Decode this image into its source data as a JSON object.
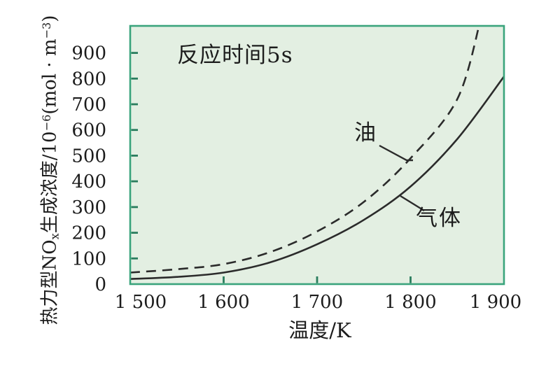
{
  "chart_data": {
    "type": "line",
    "title": "",
    "annotation": "反应时间5s",
    "xlabel": "温度/K",
    "ylabel_plain": "热力型NOx生成浓度/10−6(mol · m−3)",
    "ylabel_parts": {
      "p1": "热力型NO",
      "sub1": "x",
      "p2": "生成浓度/10",
      "sup1": "−6",
      "p3": "(mol · m",
      "sup2": "−3",
      "p4": ")"
    },
    "xlim": [
      1500,
      1900
    ],
    "ylim": [
      0,
      1005
    ],
    "grid": false,
    "legend_position": "inline-annotations",
    "x_ticks": [
      {
        "value": 1500,
        "label": "1 500"
      },
      {
        "value": 1600,
        "label": "1 600"
      },
      {
        "value": 1700,
        "label": "1 700"
      },
      {
        "value": 1800,
        "label": "1 800"
      },
      {
        "value": 1900,
        "label": "1 900"
      }
    ],
    "y_ticks": [
      {
        "value": 0,
        "label": "0"
      },
      {
        "value": 100,
        "label": "100"
      },
      {
        "value": 200,
        "label": "200"
      },
      {
        "value": 300,
        "label": "300"
      },
      {
        "value": 400,
        "label": "400"
      },
      {
        "value": 500,
        "label": "500"
      },
      {
        "value": 600,
        "label": "600"
      },
      {
        "value": 700,
        "label": "700"
      },
      {
        "value": 800,
        "label": "800"
      },
      {
        "value": 900,
        "label": "900"
      }
    ],
    "x_inner_tick_values": [
      1600,
      1700,
      1800
    ],
    "y_inner_tick_values": [
      100,
      200,
      300,
      400,
      500,
      600,
      700,
      800,
      900
    ],
    "series": [
      {
        "name": "油",
        "line_style": "dashed",
        "x": [
          1500,
          1550,
          1600,
          1650,
          1700,
          1750,
          1800,
          1850,
          1875
        ],
        "values": [
          45,
          58,
          78,
          125,
          205,
          320,
          490,
          720,
          1030
        ]
      },
      {
        "name": "气体",
        "line_style": "solid",
        "x": [
          1500,
          1550,
          1600,
          1650,
          1700,
          1750,
          1800,
          1850,
          1900
        ],
        "values": [
          20,
          28,
          45,
          85,
          155,
          250,
          380,
          565,
          808
        ]
      }
    ],
    "colors": {
      "plot_bg": "#e3efe2",
      "border": "#3aa47c",
      "tick": "#2a7d5e",
      "curve": "#2b2b2b",
      "text": "#1c1c1c",
      "page_bg": "#ffffff"
    }
  }
}
